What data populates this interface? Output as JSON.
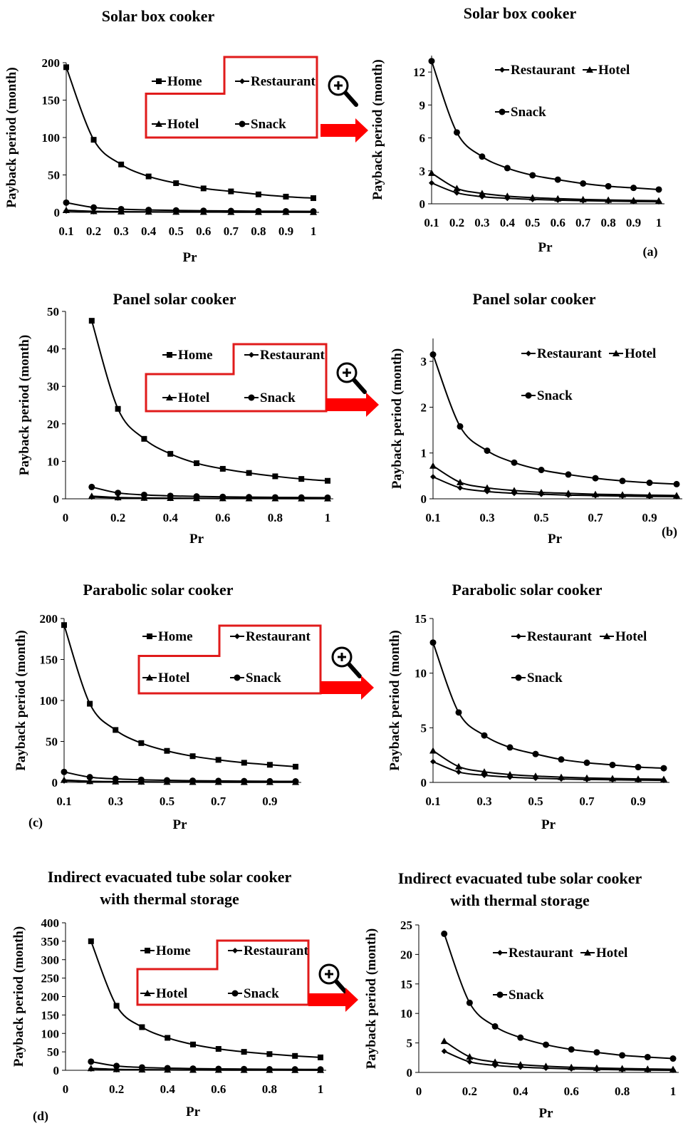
{
  "figure": {
    "panels": [
      {
        "letter": "(a)"
      },
      {
        "letter": "(b)"
      },
      {
        "letter": "(c)"
      },
      {
        "letter": "(d)"
      }
    ]
  },
  "chart_data": [
    {
      "type": "line",
      "title": "Solar box cooker",
      "xlabel": "Pr",
      "ylabel": "Payback period (month)",
      "x": [
        0.1,
        0.2,
        0.3,
        0.4,
        0.5,
        0.6,
        0.7,
        0.8,
        0.9,
        1
      ],
      "xticks": [
        "0.1",
        "0.2",
        "0.3",
        "0.4",
        "0.5",
        "0.6",
        "0.7",
        "0.8",
        "0.9",
        "1"
      ],
      "ylim": [
        0,
        200
      ],
      "yticks": [
        0,
        50,
        100,
        150,
        200
      ],
      "legend_layout": "boxed",
      "series": [
        {
          "name": "Home",
          "marker": "square",
          "values": [
            194,
            97,
            64,
            48,
            39,
            32,
            28,
            24,
            21,
            19
          ]
        },
        {
          "name": "Restaurant",
          "marker": "diamond",
          "values": [
            1.9,
            1.0,
            0.65,
            0.5,
            0.4,
            0.33,
            0.28,
            0.24,
            0.21,
            0.19
          ]
        },
        {
          "name": "Hotel",
          "marker": "triangle",
          "values": [
            2.8,
            1.4,
            0.95,
            0.7,
            0.56,
            0.47,
            0.4,
            0.35,
            0.31,
            0.28
          ]
        },
        {
          "name": "Snack",
          "marker": "circle",
          "values": [
            13,
            6.5,
            4.3,
            3.25,
            2.6,
            2.2,
            1.85,
            1.6,
            1.45,
            1.3
          ]
        }
      ]
    },
    {
      "type": "line",
      "title": "Solar box cooker",
      "xlabel": "Pr",
      "ylabel": "Payback period (month)",
      "x": [
        0.1,
        0.2,
        0.3,
        0.4,
        0.5,
        0.6,
        0.7,
        0.8,
        0.9,
        1
      ],
      "xticks": [
        "0.1",
        "0.2",
        "0.3",
        "0.4",
        "0.5",
        "0.6",
        "0.7",
        "0.8",
        "0.9",
        "1"
      ],
      "ylim": [
        0,
        13.5
      ],
      "yticks": [
        0,
        3,
        6,
        9,
        12
      ],
      "legend_layout": "plain",
      "series": [
        {
          "name": "Restaurant",
          "marker": "diamond",
          "values": [
            1.9,
            1.0,
            0.65,
            0.5,
            0.4,
            0.33,
            0.28,
            0.24,
            0.21,
            0.19
          ]
        },
        {
          "name": "Hotel",
          "marker": "triangle",
          "values": [
            2.8,
            1.4,
            0.95,
            0.7,
            0.56,
            0.47,
            0.4,
            0.35,
            0.31,
            0.28
          ]
        },
        {
          "name": "Snack",
          "marker": "circle",
          "values": [
            13,
            6.5,
            4.3,
            3.25,
            2.6,
            2.2,
            1.85,
            1.6,
            1.45,
            1.3
          ]
        }
      ]
    },
    {
      "type": "line",
      "title": "Panel solar cooker",
      "xlabel": "Pr",
      "ylabel": "Payback period (month)",
      "x": [
        0.1,
        0.2,
        0.3,
        0.4,
        0.5,
        0.6,
        0.7,
        0.8,
        0.9,
        1
      ],
      "xmin": 0,
      "xmax": 1,
      "xticks": [
        "0",
        "0.2",
        "0.4",
        "0.6",
        "0.8",
        "1"
      ],
      "xtick_values": [
        0,
        0.2,
        0.4,
        0.6,
        0.8,
        1
      ],
      "ylim": [
        0,
        50
      ],
      "yticks": [
        0,
        10,
        20,
        30,
        40,
        50
      ],
      "legend_layout": "boxed",
      "series": [
        {
          "name": "Home",
          "marker": "square",
          "values": [
            47.5,
            24,
            16,
            12,
            9.5,
            8,
            6.9,
            6,
            5.3,
            4.8
          ]
        },
        {
          "name": "Restaurant",
          "marker": "diamond",
          "values": [
            0.48,
            0.24,
            0.16,
            0.12,
            0.1,
            0.08,
            0.07,
            0.06,
            0.053,
            0.048
          ]
        },
        {
          "name": "Hotel",
          "marker": "triangle",
          "values": [
            0.72,
            0.36,
            0.24,
            0.18,
            0.14,
            0.12,
            0.1,
            0.09,
            0.08,
            0.072
          ]
        },
        {
          "name": "Snack",
          "marker": "circle",
          "values": [
            3.15,
            1.58,
            1.05,
            0.79,
            0.63,
            0.53,
            0.45,
            0.39,
            0.35,
            0.32
          ]
        }
      ]
    },
    {
      "type": "line",
      "title": "Panel solar cooker",
      "xlabel": "Pr",
      "ylabel": "Payback period (month)",
      "x": [
        0.1,
        0.2,
        0.3,
        0.4,
        0.5,
        0.6,
        0.7,
        0.8,
        0.9,
        1
      ],
      "xmin": 0.1,
      "xmax": 1.0,
      "xticks": [
        "0.1",
        "0.3",
        "0.5",
        "0.7",
        "0.9"
      ],
      "xtick_values": [
        0.1,
        0.3,
        0.5,
        0.7,
        0.9
      ],
      "ylim": [
        0,
        3.5
      ],
      "yticks": [
        0,
        1,
        2,
        3
      ],
      "legend_layout": "plain",
      "series": [
        {
          "name": "Restaurant",
          "marker": "diamond",
          "values": [
            0.48,
            0.24,
            0.16,
            0.12,
            0.1,
            0.08,
            0.07,
            0.06,
            0.053,
            0.048
          ]
        },
        {
          "name": "Hotel",
          "marker": "triangle",
          "values": [
            0.72,
            0.36,
            0.24,
            0.18,
            0.14,
            0.12,
            0.1,
            0.09,
            0.08,
            0.072
          ]
        },
        {
          "name": "Snack",
          "marker": "circle",
          "values": [
            3.15,
            1.58,
            1.05,
            0.79,
            0.63,
            0.53,
            0.45,
            0.39,
            0.35,
            0.32
          ]
        }
      ]
    },
    {
      "type": "line",
      "title": "Parabolic solar cooker",
      "xlabel": "Pr",
      "ylabel": "Payback period (month)",
      "x": [
        0.1,
        0.2,
        0.3,
        0.4,
        0.5,
        0.6,
        0.7,
        0.8,
        0.9,
        1
      ],
      "xmin": 0.1,
      "xmax": 1.0,
      "xticks": [
        "0.1",
        "0.3",
        "0.5",
        "0.7",
        "0.9"
      ],
      "xtick_values": [
        0.1,
        0.3,
        0.5,
        0.7,
        0.9
      ],
      "ylim": [
        0,
        200
      ],
      "yticks": [
        0,
        50,
        100,
        150,
        200
      ],
      "legend_layout": "boxed",
      "series": [
        {
          "name": "Home",
          "marker": "square",
          "values": [
            192,
            96,
            64,
            48,
            38.5,
            32,
            27.5,
            24,
            21.5,
            19.2
          ]
        },
        {
          "name": "Restaurant",
          "marker": "diamond",
          "values": [
            1.9,
            0.95,
            0.65,
            0.48,
            0.38,
            0.32,
            0.27,
            0.24,
            0.21,
            0.19
          ]
        },
        {
          "name": "Hotel",
          "marker": "triangle",
          "values": [
            2.9,
            1.45,
            0.97,
            0.72,
            0.58,
            0.48,
            0.41,
            0.36,
            0.32,
            0.29
          ]
        },
        {
          "name": "Snack",
          "marker": "circle",
          "values": [
            12.8,
            6.4,
            4.3,
            3.2,
            2.6,
            2.1,
            1.8,
            1.6,
            1.4,
            1.3
          ]
        }
      ]
    },
    {
      "type": "line",
      "title": "Parabolic solar cooker",
      "xlabel": "Pr",
      "ylabel": "Payback period (month)",
      "x": [
        0.1,
        0.2,
        0.3,
        0.4,
        0.5,
        0.6,
        0.7,
        0.8,
        0.9,
        1
      ],
      "xmin": 0.1,
      "xmax": 1.0,
      "xticks": [
        "0.1",
        "0.3",
        "0.5",
        "0.7",
        "0.9"
      ],
      "xtick_values": [
        0.1,
        0.3,
        0.5,
        0.7,
        0.9
      ],
      "ylim": [
        0,
        15
      ],
      "yticks": [
        0,
        5,
        10,
        15
      ],
      "legend_layout": "plain",
      "series": [
        {
          "name": "Restaurant",
          "marker": "diamond",
          "values": [
            1.9,
            0.95,
            0.65,
            0.48,
            0.38,
            0.32,
            0.27,
            0.24,
            0.21,
            0.19
          ]
        },
        {
          "name": "Hotel",
          "marker": "triangle",
          "values": [
            2.9,
            1.45,
            0.97,
            0.72,
            0.58,
            0.48,
            0.41,
            0.36,
            0.32,
            0.29
          ]
        },
        {
          "name": "Snack",
          "marker": "circle",
          "values": [
            12.8,
            6.4,
            4.3,
            3.2,
            2.6,
            2.1,
            1.8,
            1.6,
            1.4,
            1.3
          ]
        }
      ]
    },
    {
      "type": "line",
      "title": "Indirect evacuated tube solar cooker\nwith thermal storage",
      "xlabel": "Pr",
      "ylabel": "Payback period (month)",
      "x": [
        0.1,
        0.2,
        0.3,
        0.4,
        0.5,
        0.6,
        0.7,
        0.8,
        0.9,
        1
      ],
      "xmin": 0,
      "xmax": 1,
      "xticks": [
        "0",
        "0.2",
        "0.4",
        "0.6",
        "0.8",
        "1"
      ],
      "xtick_values": [
        0,
        0.2,
        0.4,
        0.6,
        0.8,
        1
      ],
      "ylim": [
        0,
        400
      ],
      "yticks": [
        0,
        50,
        100,
        150,
        200,
        250,
        300,
        350,
        400
      ],
      "legend_layout": "boxed",
      "series": [
        {
          "name": "Home",
          "marker": "square",
          "values": [
            350,
            175,
            117,
            88,
            70,
            58,
            50,
            44,
            39,
            35
          ]
        },
        {
          "name": "Restaurant",
          "marker": "diamond",
          "values": [
            3.6,
            1.8,
            1.2,
            0.9,
            0.72,
            0.6,
            0.51,
            0.45,
            0.4,
            0.36
          ]
        },
        {
          "name": "Hotel",
          "marker": "triangle",
          "values": [
            5.3,
            2.65,
            1.77,
            1.33,
            1.06,
            0.88,
            0.76,
            0.66,
            0.59,
            0.53
          ]
        },
        {
          "name": "Snack",
          "marker": "circle",
          "values": [
            23.5,
            11.8,
            7.8,
            5.9,
            4.7,
            3.9,
            3.4,
            2.9,
            2.6,
            2.35
          ]
        }
      ]
    },
    {
      "type": "line",
      "title": "Indirect evacuated tube solar cooker\nwith thermal storage",
      "xlabel": "Pr",
      "ylabel": "Payback period (month)",
      "x": [
        0.1,
        0.2,
        0.3,
        0.4,
        0.5,
        0.6,
        0.7,
        0.8,
        0.9,
        1
      ],
      "xmin": 0,
      "xmax": 1,
      "xticks": [
        "0",
        "0.2",
        "0.4",
        "0.6",
        "0.8",
        "1"
      ],
      "xtick_values": [
        0,
        0.2,
        0.4,
        0.6,
        0.8,
        1
      ],
      "ylim": [
        0,
        25
      ],
      "yticks": [
        0,
        5,
        10,
        15,
        20,
        25
      ],
      "legend_layout": "plain",
      "series": [
        {
          "name": "Restaurant",
          "marker": "diamond",
          "values": [
            3.6,
            1.8,
            1.2,
            0.9,
            0.72,
            0.6,
            0.51,
            0.45,
            0.4,
            0.36
          ]
        },
        {
          "name": "Hotel",
          "marker": "triangle",
          "values": [
            5.3,
            2.65,
            1.77,
            1.33,
            1.06,
            0.88,
            0.76,
            0.66,
            0.59,
            0.53
          ]
        },
        {
          "name": "Snack",
          "marker": "circle",
          "values": [
            23.5,
            11.8,
            7.8,
            5.9,
            4.7,
            3.9,
            3.4,
            2.9,
            2.6,
            2.35
          ]
        }
      ]
    }
  ],
  "colors": {
    "line": "#000000",
    "legend_box": "#e01b1b",
    "arrow": "#ff0000"
  },
  "icons": {
    "zoom": "magnifier-plus-icon",
    "arrow": "right-arrow-icon"
  }
}
